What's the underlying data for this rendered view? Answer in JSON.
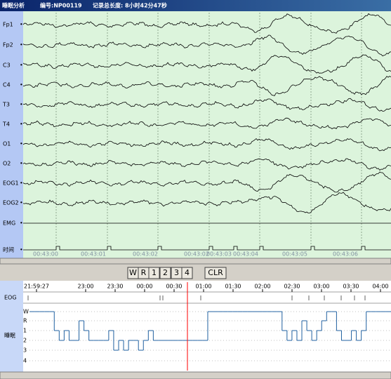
{
  "title": {
    "app": "睡眠分析",
    "id": "编号:NP00119",
    "length": "记录总长度: 8小时42分47秒"
  },
  "channels": [
    "Fp1",
    "Fp2",
    "C3",
    "C4",
    "T3",
    "T4",
    "O1",
    "O2",
    "EOG1",
    "EOG2",
    "EMG",
    "时间"
  ],
  "eeg_time_labels": [
    "00:43:00",
    "00:43:01",
    "00:43:02",
    "00:43:02",
    "00:43:03",
    "00:43:04",
    "00:43:05",
    "00:43:06"
  ],
  "buttons": [
    "W",
    "R",
    "1",
    "2",
    "3",
    "4",
    "CLR"
  ],
  "timeline": {
    "labels": [
      "21:59:27",
      "23:00",
      "23:30",
      "00:00",
      "00:30",
      "01:00",
      "01:30",
      "02:00",
      "02:30",
      "03:00",
      "03:30",
      "04:00"
    ]
  },
  "rows": {
    "eog": "EOG",
    "sleep": "睡眠"
  },
  "stages": [
    "W",
    "R",
    "1",
    "2",
    "3",
    "4"
  ],
  "hypnogram": {
    "stage_index": [
      0,
      0,
      0,
      0,
      0,
      2,
      3,
      2,
      3,
      3,
      1,
      2,
      3,
      3,
      3,
      3,
      2,
      4,
      3,
      4,
      3,
      3,
      4,
      3,
      2,
      3,
      3,
      3,
      3,
      3,
      3,
      3,
      3,
      3,
      3,
      3,
      0,
      0,
      0,
      0,
      0,
      0,
      0,
      0,
      0,
      0,
      0,
      0,
      0,
      0,
      0,
      2,
      3,
      2,
      3,
      1,
      2,
      3,
      2,
      1,
      0,
      0,
      2,
      3,
      3,
      2,
      3,
      2,
      0,
      0,
      0,
      0,
      0
    ]
  }
}
